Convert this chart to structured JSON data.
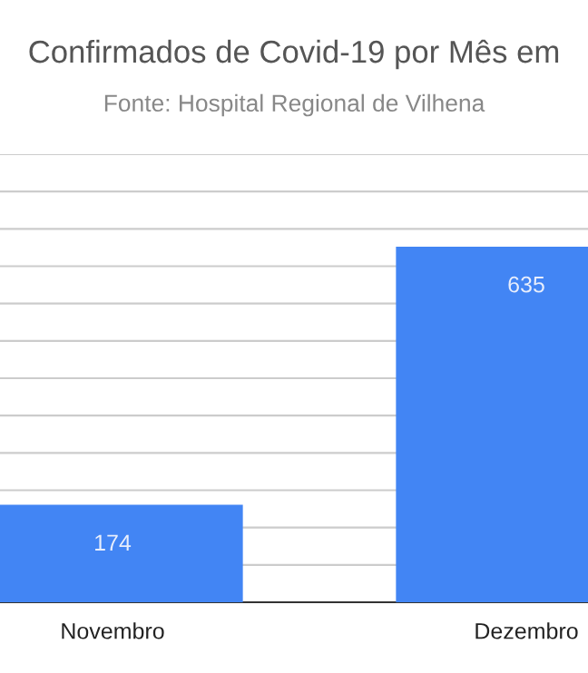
{
  "chart_data": {
    "type": "bar",
    "title": "Confirmados de Covid-19 por Mês em",
    "subtitle": "Fonte: Hospital Regional de Vilhena",
    "categories": [
      "Novembro",
      "Dezembro"
    ],
    "values": [
      174,
      635
    ],
    "color": "#4285f4",
    "data_labels": true,
    "ylim": [
      0,
      800
    ],
    "yticks": [
      {
        "value": 0,
        "label": null
      },
      {
        "value": 66.67,
        "label": null
      },
      {
        "value": 133.33,
        "label": null
      },
      {
        "value": 200,
        "label": null
      },
      {
        "value": 266.67,
        "label": null
      },
      {
        "value": 333.33,
        "label": null
      },
      {
        "value": 400,
        "label": null
      },
      {
        "value": 466.67,
        "label": null
      },
      {
        "value": 533.33,
        "label": null
      },
      {
        "value": 600,
        "label": null
      },
      {
        "value": 666.67,
        "label": null
      },
      {
        "value": 733.33,
        "label": null
      },
      {
        "value": 800,
        "label": null
      }
    ],
    "grid": "y",
    "tick_labels": "x"
  }
}
